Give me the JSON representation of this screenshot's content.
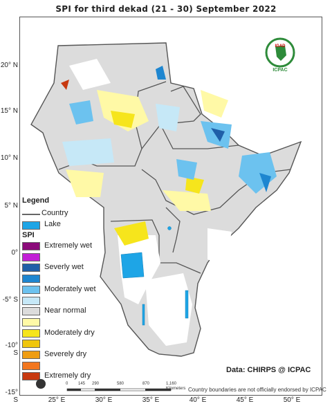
{
  "title": "SPI   for    third  dekad (21 - 30)  September 2022",
  "y_axis_labels": [
    "20° N",
    "15° N",
    "10° N",
    "5° N",
    "0°",
    "-5° S",
    "-10° S",
    "-15° S"
  ],
  "x_axis_labels": [
    "25° E",
    "30° E",
    "35° E",
    "40° E",
    "45° E",
    "50° E"
  ],
  "legend": {
    "title": "Legend",
    "country_label": "Country",
    "lake_label": "Lake",
    "spi_title": "SPI",
    "classes": [
      {
        "label": "Extremely wet",
        "color": "#8b0a7a"
      },
      {
        "label": "",
        "color": "#c21fd6"
      },
      {
        "label": "Severly wet",
        "color": "#1f5fa8"
      },
      {
        "label": "",
        "color": "#1e86d0"
      },
      {
        "label": "Moderately wet",
        "color": "#6cc2ef"
      },
      {
        "label": "",
        "color": "#c6e8f7"
      },
      {
        "label": "Near normal",
        "color": "#dcdcdc"
      },
      {
        "label": "",
        "color": "#fff9a6"
      },
      {
        "label": "Moderately dry",
        "color": "#f6e51c"
      },
      {
        "label": "",
        "color": "#f0c60c"
      },
      {
        "label": "Severely dry",
        "color": "#ef9d12"
      },
      {
        "label": "",
        "color": "#f2761e"
      },
      {
        "label": "Extremely dry",
        "color": "#c7380f"
      }
    ]
  },
  "data_credit": "Data: CHIRPS @ ICPAC",
  "disclaimer": "Country boundaries are not officially endorsed by ICPAC",
  "scale_bar": {
    "ticks": [
      "0",
      "145",
      "290",
      "580",
      "870",
      "1,160"
    ],
    "unit": "Kilometers"
  },
  "logo": {
    "top": "IGAD",
    "bottom": "ICPAC"
  },
  "colors": {
    "lake": "#1ea5e6",
    "boundary": "#555555"
  }
}
